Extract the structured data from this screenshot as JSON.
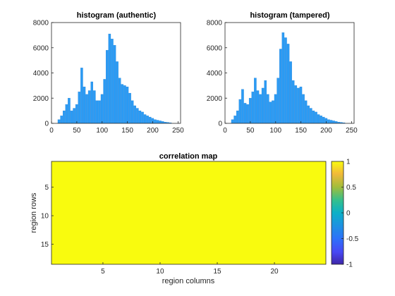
{
  "colors": {
    "bar": "#2b9bf4",
    "bar_edge": "#1f7fd6",
    "map_fill": "#f9fb0e"
  },
  "chart_data": [
    {
      "type": "bar",
      "title": "histogram (authentic)",
      "xlim": [
        0,
        255
      ],
      "ylim": [
        0,
        8000
      ],
      "xticks": [
        "0",
        "50",
        "100",
        "150",
        "200",
        "250"
      ],
      "yticks": [
        "0",
        "2000",
        "4000",
        "6000",
        "8000"
      ],
      "grid": false,
      "x": [
        10,
        15,
        20,
        25,
        30,
        35,
        40,
        45,
        50,
        55,
        60,
        65,
        70,
        75,
        80,
        85,
        90,
        95,
        100,
        105,
        110,
        115,
        120,
        125,
        130,
        135,
        140,
        145,
        150,
        155,
        160,
        165,
        170,
        175,
        180,
        185,
        190,
        195,
        200,
        205,
        210,
        215,
        220,
        225,
        230,
        235,
        240
      ],
      "values": [
        0,
        300,
        600,
        1000,
        1500,
        2000,
        1000,
        1200,
        1500,
        2500,
        4400,
        2900,
        2300,
        2600,
        3300,
        2600,
        1800,
        1800,
        2300,
        3500,
        5800,
        7100,
        6700,
        6200,
        4900,
        3600,
        3100,
        3000,
        2900,
        2400,
        1800,
        1400,
        1200,
        1000,
        900,
        700,
        600,
        500,
        400,
        300,
        250,
        200,
        150,
        100,
        80,
        50,
        0
      ]
    },
    {
      "type": "bar",
      "title": "histogram (tampered)",
      "xlim": [
        0,
        255
      ],
      "ylim": [
        0,
        8000
      ],
      "xticks": [
        "0",
        "50",
        "100",
        "150",
        "200",
        "250"
      ],
      "yticks": [
        "0",
        "2000",
        "4000",
        "6000",
        "8000"
      ],
      "grid": false,
      "x": [
        10,
        15,
        20,
        25,
        30,
        35,
        40,
        45,
        50,
        55,
        60,
        65,
        70,
        75,
        80,
        85,
        90,
        95,
        100,
        105,
        110,
        115,
        120,
        125,
        130,
        135,
        140,
        145,
        150,
        155,
        160,
        165,
        170,
        175,
        180,
        185,
        190,
        195,
        200,
        205,
        210,
        215,
        220,
        225,
        230,
        235,
        240
      ],
      "values": [
        0,
        300,
        600,
        1000,
        1900,
        2700,
        1600,
        1500,
        2000,
        2500,
        3600,
        2600,
        2300,
        2800,
        3400,
        2300,
        1700,
        1800,
        2300,
        3600,
        5900,
        7200,
        6800,
        6300,
        4900,
        3400,
        3000,
        2800,
        2900,
        2300,
        1800,
        1400,
        1200,
        1000,
        900,
        700,
        600,
        500,
        400,
        300,
        250,
        200,
        150,
        100,
        80,
        50,
        0
      ]
    },
    {
      "type": "heatmap",
      "title": "correlation map",
      "xlabel": "region columns",
      "ylabel": "region rows",
      "xlim": [
        0.5,
        24.5
      ],
      "ylim": [
        18.5,
        0.5
      ],
      "xticks": [
        "5",
        "10",
        "15",
        "20"
      ],
      "yticks": [
        "5",
        "10",
        "15"
      ],
      "value": 1,
      "clim": [
        -1,
        1
      ],
      "colorbar_ticks": [
        "1",
        "0.5",
        "0",
        "-0.5",
        "-1"
      ]
    }
  ]
}
